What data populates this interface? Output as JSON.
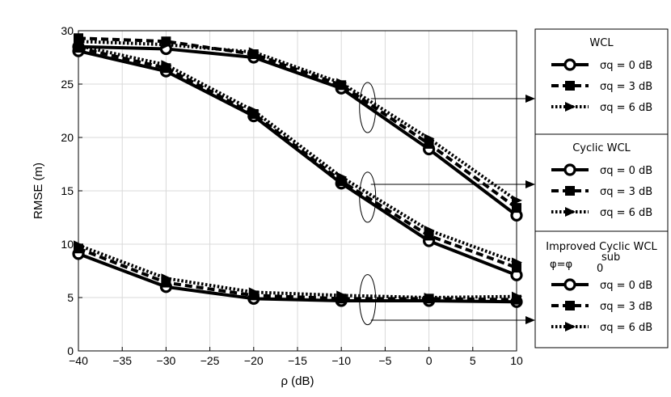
{
  "chart_data": {
    "type": "line",
    "xlabel": "ρ (dB)",
    "ylabel": "RMSE (m)",
    "xlim": [
      -40,
      10
    ],
    "ylim": [
      0,
      30
    ],
    "xticks": [
      -40,
      -35,
      -30,
      -25,
      -20,
      -15,
      -10,
      -5,
      0,
      5,
      10
    ],
    "yticks": [
      0,
      5,
      10,
      15,
      20,
      25,
      30
    ],
    "x_tick_labels": [
      "−40",
      "−35",
      "−30",
      "−25",
      "−20",
      "−15",
      "−10",
      "−5",
      "0",
      "5",
      "10"
    ],
    "y_tick_labels": [
      "0",
      "5",
      "10",
      "15",
      "20",
      "25",
      "30"
    ],
    "grid": true,
    "x": [
      -40,
      -30,
      -20,
      -10,
      0,
      10
    ],
    "groups": [
      {
        "title": "WCL",
        "series": [
          {
            "name": "σq = 0 dB",
            "marker": "circle",
            "dash": "solid",
            "values": [
              28.5,
              28.3,
              27.5,
              24.6,
              18.9,
              12.7
            ]
          },
          {
            "name": "σq = 3 dB",
            "marker": "square",
            "dash": "dashed",
            "values": [
              29.3,
              29.0,
              27.8,
              24.9,
              19.4,
              13.4
            ]
          },
          {
            "name": "σq = 6 dB",
            "marker": "triangle",
            "dash": "dotted",
            "values": [
              29.0,
              28.7,
              28.0,
              25.1,
              19.9,
              14.1
            ]
          }
        ]
      },
      {
        "title": "Cyclic WCL",
        "series": [
          {
            "name": "σq = 0 dB",
            "marker": "circle",
            "dash": "solid",
            "values": [
              28.1,
              26.2,
              22.0,
              15.7,
              10.3,
              7.1
            ]
          },
          {
            "name": "σq = 3 dB",
            "marker": "square",
            "dash": "dashed",
            "values": [
              28.4,
              26.5,
              22.2,
              15.9,
              10.8,
              7.8
            ]
          },
          {
            "name": "σq = 6 dB",
            "marker": "triangle",
            "dash": "dotted",
            "values": [
              28.6,
              26.8,
              22.5,
              16.3,
              11.3,
              8.3
            ]
          }
        ]
      },
      {
        "title": "Improved Cyclic WCL",
        "subtitle": "φ=φ",
        "subtitle_sub": "0",
        "subtitle_sup": "sub",
        "series": [
          {
            "name": "σq = 0 dB",
            "marker": "circle",
            "dash": "solid",
            "values": [
              9.1,
              6.0,
              4.9,
              4.7,
              4.7,
              4.6
            ]
          },
          {
            "name": "σq = 3 dB",
            "marker": "square",
            "dash": "dashed",
            "values": [
              9.6,
              6.4,
              5.2,
              4.9,
              4.9,
              4.8
            ]
          },
          {
            "name": "σq = 6 dB",
            "marker": "triangle",
            "dash": "dotted",
            "values": [
              9.9,
              6.8,
              5.5,
              5.2,
              5.0,
              5.1
            ]
          }
        ]
      }
    ],
    "colors": {
      "line": "#000000",
      "grid": "#d9d9d9",
      "background": "#ffffff"
    }
  }
}
